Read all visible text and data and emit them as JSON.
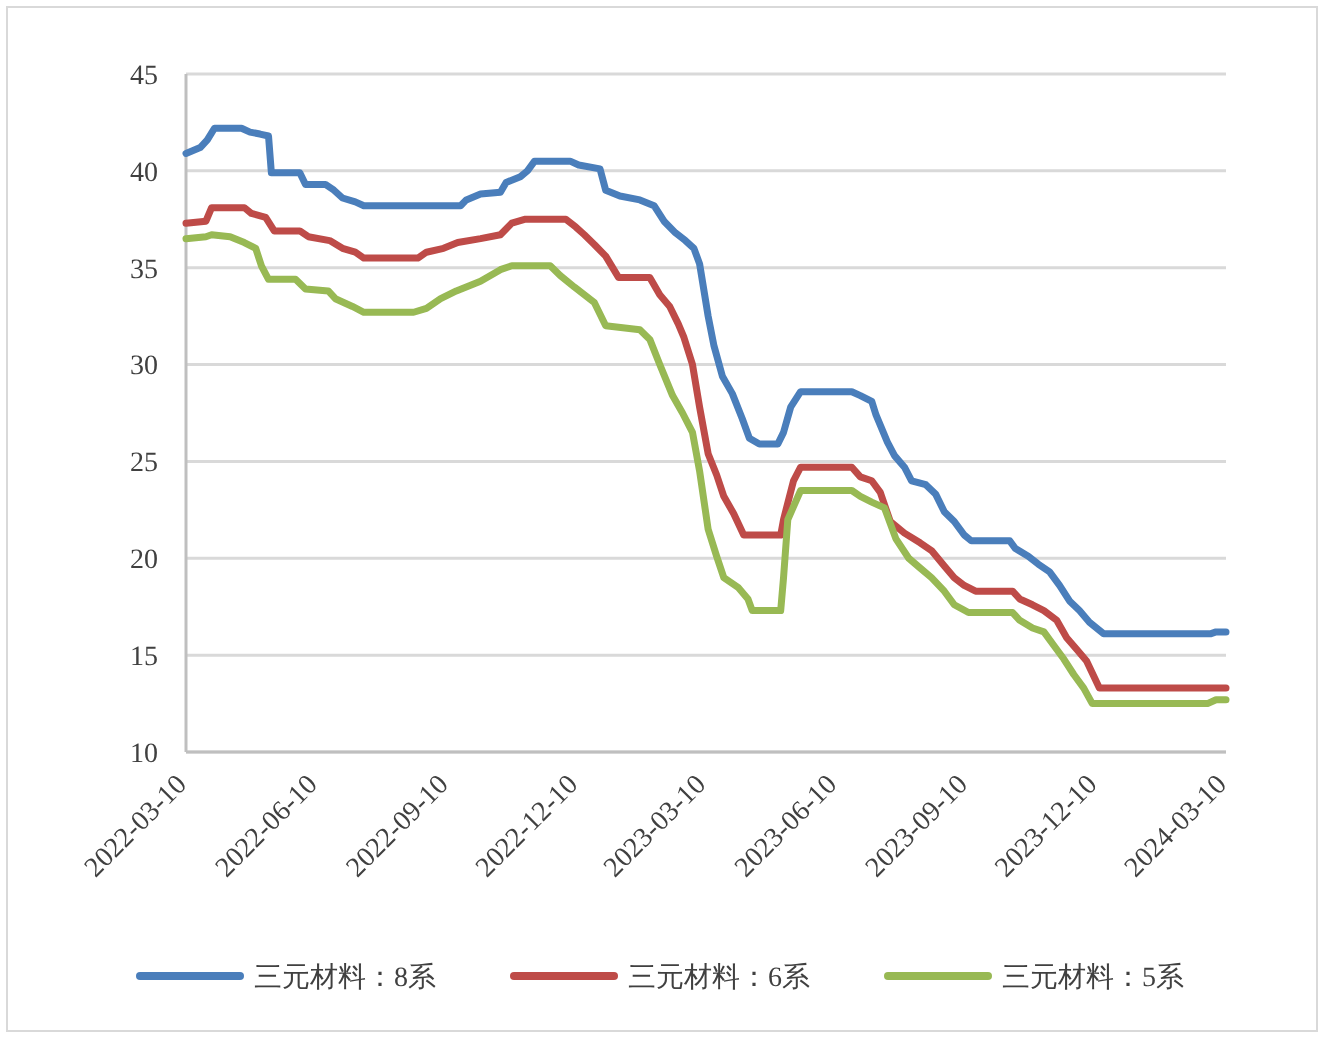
{
  "chart_data": {
    "type": "line",
    "xlim": [
      "2022-03-10",
      "2024-03-10"
    ],
    "xticks": [
      "2022-03-10",
      "2022-06-10",
      "2022-09-10",
      "2022-12-10",
      "2023-03-10",
      "2023-06-10",
      "2023-09-10",
      "2023-12-10",
      "2024-03-10"
    ],
    "ylim": [
      10,
      45
    ],
    "yticks": [
      10,
      15,
      20,
      25,
      30,
      35,
      40,
      45
    ],
    "grid": "y",
    "legend": "bottom",
    "line_style": "solid",
    "marker": "none",
    "series": [
      {
        "name": "三元材料：8系",
        "color": "#4a7ebb",
        "x": [
          "2022-03-10",
          "2022-03-20",
          "2022-03-25",
          "2022-03-30",
          "2022-04-18",
          "2022-04-24",
          "2022-05-01",
          "2022-05-07",
          "2022-05-09",
          "2022-05-29",
          "2022-06-02",
          "2022-06-16",
          "2022-06-22",
          "2022-06-28",
          "2022-07-07",
          "2022-07-13",
          "2022-09-19",
          "2022-09-23",
          "2022-10-03",
          "2022-10-17",
          "2022-10-21",
          "2022-10-31",
          "2022-11-05",
          "2022-11-10",
          "2022-12-05",
          "2022-12-11",
          "2022-12-26",
          "2022-12-30",
          "2023-01-09",
          "2023-01-23",
          "2023-02-02",
          "2023-02-09",
          "2023-02-17",
          "2023-02-24",
          "2023-03-02",
          "2023-03-06",
          "2023-03-12",
          "2023-03-16",
          "2023-03-22",
          "2023-03-29",
          "2023-04-05",
          "2023-04-10",
          "2023-04-17",
          "2023-04-30",
          "2023-05-04",
          "2023-05-09",
          "2023-05-16",
          "2023-06-21",
          "2023-06-27",
          "2023-07-05",
          "2023-07-08",
          "2023-07-16",
          "2023-07-21",
          "2023-07-28",
          "2023-08-02",
          "2023-08-12",
          "2023-08-19",
          "2023-08-25",
          "2023-09-01",
          "2023-09-08",
          "2023-09-13",
          "2023-10-10",
          "2023-10-14",
          "2023-10-23",
          "2023-10-30",
          "2023-11-07",
          "2023-11-14",
          "2023-11-21",
          "2023-11-28",
          "2023-12-05",
          "2023-12-15",
          "2024-02-28",
          "2024-03-03",
          "2024-03-10"
        ],
        "values": [
          40.9,
          41.2,
          41.6,
          42.2,
          42.2,
          42.0,
          41.9,
          41.8,
          39.9,
          39.9,
          39.3,
          39.3,
          39.0,
          38.6,
          38.4,
          38.2,
          38.2,
          38.5,
          38.8,
          38.9,
          39.4,
          39.7,
          40.0,
          40.5,
          40.5,
          40.3,
          40.1,
          39.0,
          38.7,
          38.5,
          38.2,
          37.4,
          36.8,
          36.4,
          36.0,
          35.2,
          32.5,
          31.0,
          29.4,
          28.5,
          27.2,
          26.2,
          25.9,
          25.9,
          26.5,
          27.8,
          28.6,
          28.6,
          28.4,
          28.1,
          27.4,
          26.0,
          25.3,
          24.7,
          24.0,
          23.8,
          23.3,
          22.4,
          21.9,
          21.2,
          20.9,
          20.9,
          20.5,
          20.1,
          19.7,
          19.3,
          18.6,
          17.8,
          17.3,
          16.7,
          16.1,
          16.1,
          16.2,
          16.2
        ]
      },
      {
        "name": "三元材料：6系",
        "color": "#be4b48",
        "x": [
          "2022-03-10",
          "2022-03-24",
          "2022-03-28",
          "2022-04-20",
          "2022-04-25",
          "2022-05-05",
          "2022-05-11",
          "2022-05-29",
          "2022-06-04",
          "2022-06-19",
          "2022-06-28",
          "2022-07-07",
          "2022-07-13",
          "2022-08-20",
          "2022-08-26",
          "2022-09-07",
          "2022-09-17",
          "2022-10-03",
          "2022-10-17",
          "2022-10-25",
          "2022-11-03",
          "2022-12-02",
          "2022-12-09",
          "2022-12-15",
          "2022-12-22",
          "2022-12-30",
          "2023-01-08",
          "2023-01-30",
          "2023-02-06",
          "2023-02-13",
          "2023-02-19",
          "2023-02-23",
          "2023-03-01",
          "2023-03-06",
          "2023-03-12",
          "2023-03-18",
          "2023-03-23",
          "2023-03-30",
          "2023-04-06",
          "2023-05-02",
          "2023-05-04",
          "2023-05-11",
          "2023-05-16",
          "2023-06-21",
          "2023-06-27",
          "2023-07-05",
          "2023-07-11",
          "2023-07-18",
          "2023-07-28",
          "2023-08-08",
          "2023-08-16",
          "2023-08-25",
          "2023-09-01",
          "2023-09-08",
          "2023-09-16",
          "2023-10-12",
          "2023-10-17",
          "2023-10-26",
          "2023-11-03",
          "2023-11-12",
          "2023-11-19",
          "2023-11-26",
          "2023-12-03",
          "2023-12-12",
          "2024-03-10"
        ],
        "values": [
          37.3,
          37.4,
          38.1,
          38.1,
          37.8,
          37.6,
          36.9,
          36.9,
          36.6,
          36.4,
          36.0,
          35.8,
          35.5,
          35.5,
          35.8,
          36.0,
          36.3,
          36.5,
          36.7,
          37.3,
          37.5,
          37.5,
          37.1,
          36.7,
          36.2,
          35.6,
          34.5,
          34.5,
          33.6,
          33.0,
          32.1,
          31.4,
          30.0,
          27.8,
          25.4,
          24.3,
          23.2,
          22.3,
          21.2,
          21.2,
          22.0,
          24.0,
          24.7,
          24.7,
          24.2,
          24.0,
          23.4,
          21.9,
          21.3,
          20.8,
          20.4,
          19.6,
          19.0,
          18.6,
          18.3,
          18.3,
          17.9,
          17.6,
          17.3,
          16.8,
          15.9,
          15.3,
          14.7,
          13.3,
          13.3
        ]
      },
      {
        "name": "三元材料：5系",
        "color": "#98b954",
        "x": [
          "2022-03-10",
          "2022-03-24",
          "2022-03-28",
          "2022-04-10",
          "2022-04-20",
          "2022-04-28",
          "2022-05-02",
          "2022-05-07",
          "2022-05-26",
          "2022-06-02",
          "2022-06-18",
          "2022-06-23",
          "2022-07-05",
          "2022-07-13",
          "2022-08-17",
          "2022-08-26",
          "2022-09-05",
          "2022-09-16",
          "2022-10-03",
          "2022-10-17",
          "2022-10-25",
          "2022-11-21",
          "2022-11-28",
          "2022-12-08",
          "2022-12-15",
          "2022-12-22",
          "2022-12-30",
          "2023-01-23",
          "2023-01-30",
          "2023-02-06",
          "2023-02-15",
          "2023-02-22",
          "2023-03-01",
          "2023-03-06",
          "2023-03-12",
          "2023-03-18",
          "2023-03-23",
          "2023-04-02",
          "2023-04-09",
          "2023-04-12",
          "2023-05-02",
          "2023-05-04",
          "2023-05-07",
          "2023-05-16",
          "2023-06-21",
          "2023-06-27",
          "2023-07-05",
          "2023-07-14",
          "2023-07-22",
          "2023-07-31",
          "2023-08-08",
          "2023-08-16",
          "2023-08-25",
          "2023-09-01",
          "2023-09-11",
          "2023-10-12",
          "2023-10-17",
          "2023-10-26",
          "2023-11-03",
          "2023-11-10",
          "2023-11-17",
          "2023-11-24",
          "2023-12-01",
          "2023-12-07",
          "2024-02-26",
          "2024-03-03",
          "2024-03-10"
        ],
        "values": [
          36.5,
          36.6,
          36.7,
          36.6,
          36.3,
          36.0,
          35.1,
          34.4,
          34.4,
          33.9,
          33.8,
          33.4,
          33.0,
          32.7,
          32.7,
          32.9,
          33.4,
          33.8,
          34.3,
          34.9,
          35.1,
          35.1,
          34.6,
          34.0,
          33.6,
          33.2,
          32.0,
          31.8,
          31.3,
          30.0,
          28.4,
          27.5,
          26.5,
          24.5,
          21.5,
          20.1,
          19.0,
          18.5,
          17.9,
          17.3,
          17.3,
          19.0,
          22.0,
          23.5,
          23.5,
          23.2,
          22.9,
          22.6,
          21.0,
          20.0,
          19.5,
          19.0,
          18.3,
          17.6,
          17.2,
          17.2,
          16.8,
          16.4,
          16.2,
          15.5,
          14.8,
          14.0,
          13.3,
          12.5,
          12.5,
          12.7,
          12.7
        ]
      }
    ]
  }
}
